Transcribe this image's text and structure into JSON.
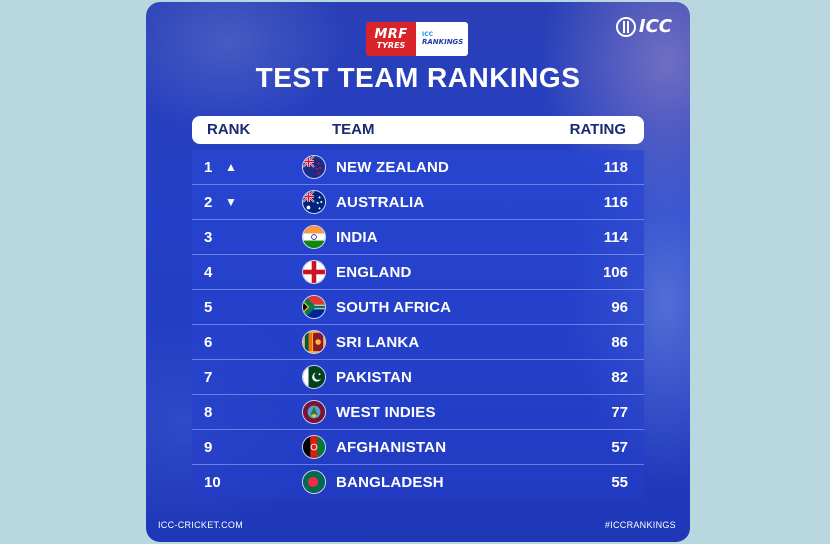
{
  "brand": {
    "sponsor_line1": "MRF",
    "sponsor_line2": "TYRES",
    "badge_line1": "ICC",
    "badge_line2": "RANKINGS",
    "logo_text": "ICC"
  },
  "title": "TEST TEAM RANKINGS",
  "columns": {
    "rank": "RANK",
    "team": "TEAM",
    "rating": "RATING"
  },
  "rows": [
    {
      "rank": "1",
      "arrow": "▲",
      "team": "NEW ZEALAND",
      "rating": "118",
      "flag": "new-zealand-flag"
    },
    {
      "rank": "2",
      "arrow": "▼",
      "team": "AUSTRALIA",
      "rating": "116",
      "flag": "australia-flag"
    },
    {
      "rank": "3",
      "arrow": "",
      "team": "INDIA",
      "rating": "114",
      "flag": "india-flag"
    },
    {
      "rank": "4",
      "arrow": "",
      "team": "ENGLAND",
      "rating": "106",
      "flag": "england-flag"
    },
    {
      "rank": "5",
      "arrow": "",
      "team": "SOUTH AFRICA",
      "rating": "96",
      "flag": "south-africa-flag"
    },
    {
      "rank": "6",
      "arrow": "",
      "team": "SRI LANKA",
      "rating": "86",
      "flag": "sri-lanka-flag"
    },
    {
      "rank": "7",
      "arrow": "",
      "team": "PAKISTAN",
      "rating": "82",
      "flag": "pakistan-flag"
    },
    {
      "rank": "8",
      "arrow": "",
      "team": "WEST INDIES",
      "rating": "77",
      "flag": "west-indies-flag"
    },
    {
      "rank": "9",
      "arrow": "",
      "team": "AFGHANISTAN",
      "rating": "57",
      "flag": "afghanistan-flag"
    },
    {
      "rank": "10",
      "arrow": "",
      "team": "BANGLADESH",
      "rating": "55",
      "flag": "bangladesh-flag"
    }
  ],
  "footer": {
    "left": "ICC-CRICKET.COM",
    "right": "#ICCRANKINGS"
  },
  "colors": {
    "background": "#b9d7df",
    "card": "#2440c8",
    "accent_red": "#d8232a"
  }
}
